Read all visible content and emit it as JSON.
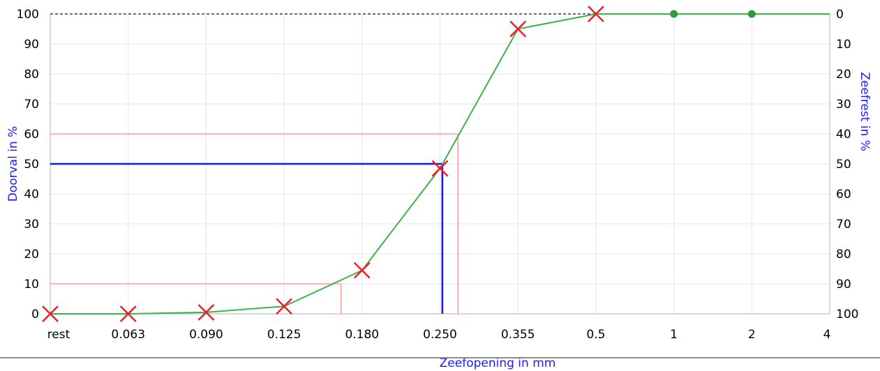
{
  "chart_data": {
    "type": "line",
    "title": "",
    "xlabel": "Zeefopening in mm",
    "ylabel": "Doorval in %",
    "y2label": "Zeefrest in %",
    "categories": [
      "rest",
      "0.063",
      "0.090",
      "0.125",
      "0.180",
      "0.250",
      "0.355",
      "0.5",
      "1",
      "2",
      "4"
    ],
    "yticks": [
      0,
      10,
      20,
      30,
      40,
      50,
      60,
      70,
      80,
      90,
      100
    ],
    "y2ticks": [
      100,
      90,
      80,
      70,
      60,
      50,
      40,
      30,
      20,
      10,
      0
    ],
    "ylim": [
      0,
      100
    ],
    "grid": true,
    "series": [
      {
        "values": [
          0,
          0,
          0.5,
          2.5,
          14.5,
          48.5,
          95,
          100,
          100,
          100,
          100
        ],
        "markers": [
          "cross",
          "cross",
          "cross",
          "cross",
          "cross",
          "cross",
          "cross",
          "cross",
          "dot",
          "dot",
          null
        ],
        "line_color": "#3cb34a",
        "marker_color": "#e8202a",
        "dot_color": "#2e9a3a"
      }
    ],
    "reference_lines": [
      {
        "y": 50,
        "x_category_pos": 5.03,
        "color": "#1414ff"
      },
      {
        "y": 60,
        "x_category_pos": 5.23,
        "color": "#ff9a9a"
      },
      {
        "y": 10,
        "x_category_pos": 3.73,
        "color": "#ff9a9a"
      }
    ],
    "top_dashed_line": {
      "y": 100,
      "color": "#3a2a8a"
    }
  }
}
